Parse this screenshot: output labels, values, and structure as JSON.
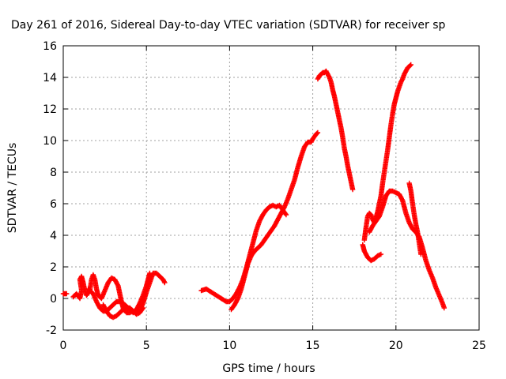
{
  "chart_data": {
    "type": "scatter",
    "title": "Day 261 of 2016, Sidereal Day-to-day VTEC variation (SDTVAR) for receiver sp",
    "xlabel": "GPS time / hours",
    "ylabel": "SDTVAR / TECUs",
    "xlim": [
      0,
      25
    ],
    "ylim": [
      -2,
      16
    ],
    "xticks": [
      "0",
      "5",
      "10",
      "15",
      "20",
      "25"
    ],
    "yticks": [
      "-2",
      "0",
      "2",
      "4",
      "6",
      "8",
      "10",
      "12",
      "14",
      "16"
    ],
    "grid": true,
    "marker_color": "#ff0000",
    "marker": "plus",
    "segments": [
      [
        [
          0.0,
          0.3
        ],
        [
          0.1,
          0.3
        ],
        [
          0.2,
          0.3
        ]
      ],
      [
        [
          0.6,
          0.1
        ],
        [
          0.8,
          0.3
        ],
        [
          1.0,
          0.0
        ],
        [
          1.1,
          0.5
        ],
        [
          1.0,
          1.2
        ],
        [
          1.1,
          1.4
        ],
        [
          1.2,
          1.0
        ],
        [
          1.3,
          0.5
        ],
        [
          1.4,
          0.2
        ],
        [
          1.6,
          0.5
        ],
        [
          1.7,
          1.2
        ],
        [
          1.8,
          1.5
        ],
        [
          1.9,
          1.2
        ],
        [
          2.0,
          0.6
        ],
        [
          2.1,
          0.2
        ],
        [
          2.3,
          0.0
        ],
        [
          2.5,
          0.5
        ],
        [
          2.7,
          1.0
        ],
        [
          2.9,
          1.3
        ],
        [
          3.1,
          1.2
        ],
        [
          3.3,
          0.8
        ],
        [
          3.4,
          0.3
        ],
        [
          3.5,
          -0.2
        ],
        [
          3.6,
          -0.6
        ],
        [
          3.8,
          -0.9
        ],
        [
          4.0,
          -0.9
        ],
        [
          4.2,
          -0.8
        ],
        [
          4.4,
          -0.9
        ],
        [
          4.6,
          -0.8
        ],
        [
          4.8,
          -0.3
        ],
        [
          5.0,
          0.4
        ],
        [
          5.2,
          1.0
        ],
        [
          5.4,
          1.6
        ],
        [
          5.6,
          1.6
        ],
        [
          5.8,
          1.4
        ],
        [
          6.0,
          1.2
        ],
        [
          6.1,
          1.0
        ]
      ],
      [
        [
          1.5,
          0.6
        ],
        [
          1.8,
          0.3
        ],
        [
          2.0,
          -0.2
        ],
        [
          2.2,
          -0.6
        ],
        [
          2.4,
          -0.8
        ],
        [
          2.6,
          -0.8
        ],
        [
          2.8,
          -0.6
        ],
        [
          3.0,
          -0.4
        ],
        [
          3.2,
          -0.2
        ],
        [
          3.4,
          -0.2
        ],
        [
          3.6,
          -0.3
        ],
        [
          3.8,
          -0.5
        ],
        [
          4.0,
          -0.7
        ],
        [
          4.2,
          -0.9
        ],
        [
          4.4,
          -0.7
        ],
        [
          4.6,
          -0.3
        ],
        [
          4.8,
          0.2
        ],
        [
          5.0,
          0.8
        ],
        [
          5.1,
          1.2
        ],
        [
          5.2,
          1.6
        ]
      ],
      [
        [
          2.4,
          -0.4
        ],
        [
          2.6,
          -0.8
        ],
        [
          2.8,
          -1.1
        ],
        [
          3.0,
          -1.2
        ],
        [
          3.2,
          -1.1
        ],
        [
          3.4,
          -0.9
        ],
        [
          3.6,
          -0.7
        ],
        [
          3.8,
          -0.6
        ],
        [
          4.0,
          -0.6
        ],
        [
          4.2,
          -0.8
        ],
        [
          4.4,
          -1.0
        ],
        [
          4.6,
          -0.9
        ],
        [
          4.8,
          -0.6
        ]
      ],
      [
        [
          8.3,
          0.5
        ],
        [
          8.6,
          0.6
        ],
        [
          8.9,
          0.4
        ],
        [
          9.2,
          0.2
        ],
        [
          9.5,
          0.0
        ],
        [
          9.8,
          -0.2
        ],
        [
          10.0,
          -0.2
        ],
        [
          10.2,
          0.0
        ],
        [
          10.4,
          0.3
        ],
        [
          10.6,
          0.7
        ],
        [
          10.8,
          1.2
        ],
        [
          11.0,
          1.9
        ],
        [
          11.2,
          2.7
        ],
        [
          11.4,
          3.5
        ],
        [
          11.6,
          4.3
        ],
        [
          11.8,
          4.9
        ],
        [
          12.0,
          5.3
        ],
        [
          12.2,
          5.6
        ],
        [
          12.4,
          5.8
        ],
        [
          12.6,
          5.9
        ],
        [
          12.8,
          5.8
        ],
        [
          13.0,
          5.9
        ],
        [
          13.2,
          5.6
        ],
        [
          13.4,
          5.3
        ]
      ],
      [
        [
          10.1,
          -0.7
        ],
        [
          10.3,
          -0.4
        ],
        [
          10.5,
          0.0
        ],
        [
          10.7,
          0.6
        ],
        [
          10.9,
          1.4
        ],
        [
          11.1,
          2.2
        ],
        [
          11.3,
          2.7
        ],
        [
          11.5,
          3.0
        ],
        [
          11.7,
          3.2
        ],
        [
          11.9,
          3.4
        ],
        [
          12.1,
          3.7
        ],
        [
          12.3,
          4.0
        ],
        [
          12.5,
          4.3
        ],
        [
          12.7,
          4.6
        ],
        [
          12.9,
          5.0
        ],
        [
          13.1,
          5.4
        ],
        [
          13.3,
          5.8
        ],
        [
          13.5,
          6.3
        ],
        [
          13.7,
          6.9
        ],
        [
          13.9,
          7.5
        ],
        [
          14.1,
          8.3
        ],
        [
          14.3,
          9.0
        ],
        [
          14.5,
          9.6
        ],
        [
          14.7,
          9.9
        ],
        [
          14.9,
          9.9
        ],
        [
          15.0,
          10.1
        ],
        [
          15.2,
          10.4
        ],
        [
          15.3,
          10.5
        ]
      ],
      [
        [
          15.3,
          13.9
        ],
        [
          15.4,
          14.1
        ],
        [
          15.5,
          14.2
        ],
        [
          15.6,
          14.3
        ],
        [
          15.7,
          14.3
        ],
        [
          15.8,
          14.4
        ],
        [
          15.9,
          14.2
        ],
        [
          16.0,
          14.0
        ],
        [
          16.1,
          13.7
        ],
        [
          16.2,
          13.2
        ],
        [
          16.3,
          12.8
        ],
        [
          16.4,
          12.3
        ],
        [
          16.5,
          11.8
        ],
        [
          16.6,
          11.3
        ],
        [
          16.7,
          10.8
        ],
        [
          16.8,
          10.2
        ],
        [
          16.9,
          9.5
        ],
        [
          17.0,
          9.0
        ],
        [
          17.1,
          8.4
        ],
        [
          17.2,
          7.9
        ],
        [
          17.3,
          7.4
        ],
        [
          17.4,
          6.9
        ]
      ],
      [
        [
          18.1,
          3.7
        ],
        [
          18.2,
          4.5
        ],
        [
          18.3,
          5.2
        ],
        [
          18.4,
          5.4
        ],
        [
          18.5,
          5.3
        ],
        [
          18.6,
          5.0
        ],
        [
          18.7,
          4.8
        ],
        [
          18.8,
          5.1
        ],
        [
          18.9,
          5.5
        ],
        [
          19.0,
          6.0
        ],
        [
          19.1,
          6.5
        ],
        [
          19.2,
          7.3
        ],
        [
          19.3,
          8.0
        ],
        [
          19.4,
          8.7
        ],
        [
          19.5,
          9.4
        ],
        [
          19.6,
          10.2
        ],
        [
          19.7,
          11.0
        ],
        [
          19.8,
          11.7
        ],
        [
          19.9,
          12.3
        ],
        [
          20.0,
          12.7
        ],
        [
          20.1,
          13.1
        ],
        [
          20.2,
          13.4
        ],
        [
          20.3,
          13.7
        ],
        [
          20.4,
          13.9
        ],
        [
          20.5,
          14.2
        ],
        [
          20.6,
          14.4
        ],
        [
          20.7,
          14.6
        ],
        [
          20.8,
          14.7
        ],
        [
          20.9,
          14.8
        ]
      ],
      [
        [
          18.0,
          3.4
        ],
        [
          18.1,
          3.0
        ],
        [
          18.3,
          2.6
        ],
        [
          18.5,
          2.4
        ],
        [
          18.7,
          2.5
        ],
        [
          18.9,
          2.7
        ],
        [
          19.1,
          2.8
        ]
      ],
      [
        [
          18.4,
          4.2
        ],
        [
          18.6,
          4.6
        ],
        [
          18.8,
          4.9
        ],
        [
          19.0,
          5.2
        ],
        [
          19.2,
          5.8
        ],
        [
          19.4,
          6.5
        ],
        [
          19.6,
          6.8
        ],
        [
          19.8,
          6.8
        ],
        [
          20.0,
          6.7
        ],
        [
          20.2,
          6.6
        ],
        [
          20.4,
          6.2
        ],
        [
          20.6,
          5.4
        ],
        [
          20.8,
          4.8
        ],
        [
          21.0,
          4.4
        ],
        [
          21.2,
          4.2
        ],
        [
          21.4,
          3.9
        ],
        [
          21.6,
          3.2
        ],
        [
          21.8,
          2.4
        ],
        [
          22.0,
          1.8
        ],
        [
          22.2,
          1.3
        ],
        [
          22.4,
          0.7
        ],
        [
          22.6,
          0.2
        ],
        [
          22.8,
          -0.3
        ],
        [
          22.9,
          -0.6
        ]
      ],
      [
        [
          20.8,
          7.3
        ],
        [
          20.9,
          6.8
        ],
        [
          21.0,
          6.0
        ],
        [
          21.1,
          5.3
        ],
        [
          21.2,
          4.7
        ],
        [
          21.3,
          4.2
        ],
        [
          21.4,
          3.5
        ],
        [
          21.5,
          2.8
        ]
      ]
    ]
  }
}
